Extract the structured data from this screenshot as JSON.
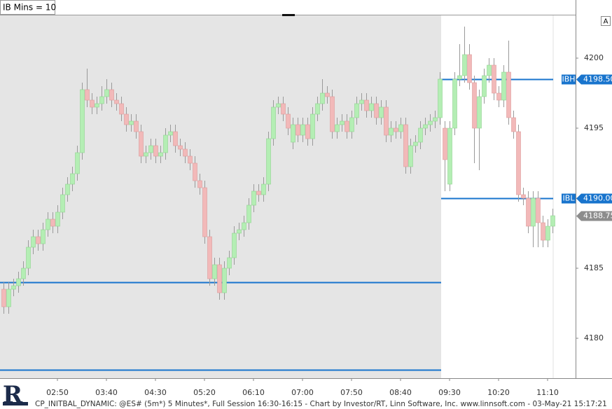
{
  "chart_data": {
    "type": "candlestick",
    "title": "IB Mins = 10",
    "corner_label": "A",
    "footer": "CP_INITBAL_DYNAMIC: @ES# (5m*) 5 Minutes*, Full Session 16:30-16:15 - Chart by Investor/RT, Linn Software, Inc. www.linnsoft.com - 03-May-21 15:17:21",
    "up_color": "#b4eeb4",
    "down_color": "#f2b9b9",
    "categories": [
      null,
      null,
      null,
      null,
      null,
      null,
      null,
      null,
      null,
      null,
      null,
      "02:50",
      null,
      null,
      null,
      null,
      null,
      null,
      null,
      null,
      null,
      "03:40",
      null,
      null,
      null,
      null,
      null,
      null,
      null,
      null,
      null,
      "04:30",
      null,
      null,
      null,
      null,
      null,
      null,
      null,
      null,
      null,
      "05:20",
      null,
      null,
      null,
      null,
      null,
      null,
      null,
      null,
      null,
      "06:10",
      null,
      null,
      null,
      null,
      null,
      null,
      null,
      null,
      null,
      "07:00",
      null,
      null,
      null,
      null,
      null,
      null,
      null,
      null,
      null,
      "07:50",
      null,
      null,
      null,
      null,
      null,
      null,
      null,
      null,
      null,
      "08:40",
      null,
      null,
      null,
      null,
      null,
      null,
      null,
      null,
      null,
      "09:30",
      null,
      null,
      null,
      null,
      null,
      null,
      null,
      null,
      null,
      "10:20",
      null,
      null,
      null,
      null,
      null,
      null,
      null,
      null,
      null,
      "11:10",
      null
    ],
    "open": [
      4183.5,
      4182.25,
      4183.5,
      4183.75,
      4184.25,
      4185.0,
      4186.5,
      4187.25,
      4186.75,
      4187.75,
      4188.5,
      4188.0,
      4189.0,
      4190.25,
      4191.0,
      4191.75,
      4193.25,
      4197.75,
      4197.0,
      4196.5,
      4196.75,
      4197.25,
      4197.75,
      4197.0,
      4196.75,
      4196.0,
      4195.25,
      4195.5,
      4194.75,
      4193.0,
      4193.25,
      4193.75,
      4193.0,
      4193.25,
      4194.5,
      4194.75,
      4193.75,
      4193.5,
      4193.0,
      4192.5,
      4191.25,
      4190.75,
      4187.25,
      4184.25,
      4185.25,
      4183.25,
      4185.0,
      4185.75,
      4187.5,
      4187.75,
      4188.25,
      4189.5,
      4190.5,
      4190.25,
      4191.0,
      4194.25,
      4196.5,
      4196.75,
      4196.0,
      4194.0,
      4195.25,
      4194.5,
      4195.25,
      4194.25,
      4196.0,
      4196.75,
      4197.5,
      4197.25,
      4194.75,
      4195.25,
      4195.5,
      4194.75,
      4195.75,
      4196.75,
      4197.0,
      4196.25,
      4196.75,
      4195.75,
      4196.5,
      4194.5,
      4195.0,
      4194.75,
      4195.25,
      4192.25,
      4193.75,
      4194.0,
      4195.0,
      4195.25,
      4195.5,
      4195.75,
      4195.0,
      4191.0,
      4195.0,
      4198.5,
      4198.75,
      4200.25,
      4198.25,
      4195.0,
      4197.25,
      4198.75,
      4199.5,
      4197.5,
      4197.0,
      4199.0,
      4195.75,
      4194.75,
      4190.25,
      4190.0,
      4188.0,
      4190.0,
      4188.25,
      4187.0,
      4188.0
    ],
    "high": [
      4184.0,
      4184.0,
      4184.25,
      4184.75,
      4185.5,
      4187.0,
      4187.75,
      4187.75,
      4188.25,
      4189.0,
      4189.0,
      4189.5,
      4190.75,
      4191.5,
      4192.25,
      4193.75,
      4198.25,
      4199.25,
      4197.5,
      4197.25,
      4198.0,
      4198.5,
      4198.25,
      4197.5,
      4197.25,
      4196.5,
      4196.0,
      4196.0,
      4195.25,
      4193.75,
      4194.25,
      4194.25,
      4193.75,
      4195.0,
      4195.25,
      4195.25,
      4194.25,
      4194.0,
      4193.5,
      4193.0,
      4191.75,
      4191.25,
      4187.75,
      4185.75,
      4185.75,
      4185.5,
      4186.25,
      4188.0,
      4188.25,
      4188.75,
      4190.0,
      4191.0,
      4191.0,
      4191.5,
      4194.75,
      4197.0,
      4197.25,
      4197.25,
      4196.5,
      4195.75,
      4195.75,
      4195.75,
      4195.75,
      4196.5,
      4197.25,
      4198.5,
      4198.0,
      4197.75,
      4195.75,
      4196.0,
      4196.0,
      4196.25,
      4197.25,
      4197.5,
      4197.5,
      4197.25,
      4197.25,
      4197.0,
      4197.0,
      4195.5,
      4195.5,
      4195.75,
      4195.75,
      4194.25,
      4194.5,
      4195.5,
      4195.75,
      4196.0,
      4196.25,
      4199.0,
      4195.5,
      4195.5,
      4199.0,
      4201.0,
      4202.25,
      4201.0,
      4198.75,
      4197.75,
      4199.25,
      4200.0,
      4200.0,
      4198.0,
      4199.5,
      4201.25,
      4196.25,
      4195.25,
      4190.75,
      4190.5,
      4190.5,
      4190.5,
      4188.75,
      4188.5,
      4189.25
    ],
    "low": [
      4181.75,
      4181.75,
      4183.0,
      4183.25,
      4183.75,
      4184.5,
      4186.0,
      4186.25,
      4186.25,
      4187.25,
      4187.5,
      4187.5,
      4188.5,
      4189.75,
      4190.5,
      4191.25,
      4192.75,
      4196.5,
      4196.0,
      4196.0,
      4196.25,
      4196.75,
      4196.5,
      4196.25,
      4195.5,
      4194.75,
      4194.75,
      4194.25,
      4192.5,
      4192.5,
      4192.75,
      4192.5,
      4192.5,
      4192.75,
      4194.0,
      4193.25,
      4193.0,
      4192.5,
      4192.0,
      4190.75,
      4190.25,
      4186.75,
      4183.75,
      4183.75,
      4182.75,
      4182.75,
      4184.5,
      4185.25,
      4187.0,
      4187.25,
      4187.75,
      4189.0,
      4189.75,
      4189.75,
      4190.5,
      4193.75,
      4196.0,
      4195.5,
      4194.5,
      4193.5,
      4194.0,
      4194.0,
      4193.75,
      4193.75,
      4195.5,
      4196.25,
      4196.75,
      4194.25,
      4194.25,
      4194.75,
      4194.25,
      4194.25,
      4195.25,
      4196.25,
      4195.75,
      4195.75,
      4195.25,
      4195.25,
      4194.0,
      4194.0,
      4194.25,
      4194.25,
      4191.75,
      4191.75,
      4193.25,
      4193.5,
      4194.5,
      4194.75,
      4195.0,
      4195.25,
      4190.5,
      4190.5,
      4194.5,
      4198.0,
      4198.25,
      4197.75,
      4192.5,
      4192.0,
      4196.75,
      4198.25,
      4197.0,
      4196.5,
      4196.5,
      4195.25,
      4194.25,
      4189.75,
      4189.5,
      4187.5,
      4186.5,
      4186.5,
      4186.5,
      4186.5,
      4187.5
    ],
    "close": [
      4182.25,
      4183.5,
      4183.75,
      4184.25,
      4185.0,
      4186.5,
      4187.25,
      4186.75,
      4187.75,
      4188.5,
      4188.0,
      4189.0,
      4190.25,
      4191.0,
      4191.75,
      4193.25,
      4197.75,
      4197.0,
      4196.5,
      4196.75,
      4197.25,
      4197.75,
      4197.0,
      4196.75,
      4196.0,
      4195.25,
      4195.5,
      4194.75,
      4193.0,
      4193.25,
      4193.75,
      4193.0,
      4193.25,
      4194.5,
      4194.75,
      4193.75,
      4193.5,
      4193.0,
      4192.5,
      4191.25,
      4190.75,
      4187.25,
      4184.25,
      4185.25,
      4183.25,
      4185.0,
      4185.75,
      4187.5,
      4187.75,
      4188.25,
      4189.5,
      4190.5,
      4190.25,
      4191.0,
      4194.25,
      4196.5,
      4196.75,
      4196.0,
      4195.0,
      4195.25,
      4194.5,
      4195.25,
      4194.25,
      4196.0,
      4196.75,
      4197.5,
      4197.25,
      4194.75,
      4195.25,
      4195.5,
      4194.75,
      4195.75,
      4196.75,
      4197.0,
      4196.25,
      4196.75,
      4195.75,
      4196.5,
      4194.5,
      4195.0,
      4194.75,
      4195.25,
      4192.25,
      4193.75,
      4194.0,
      4195.0,
      4195.25,
      4195.5,
      4195.75,
      4198.5,
      4192.75,
      4195.0,
      4198.5,
      4198.75,
      4200.25,
      4198.25,
      4195.0,
      4197.25,
      4198.75,
      4199.5,
      4197.5,
      4197.0,
      4199.0,
      4195.75,
      4194.75,
      4190.25,
      4190.0,
      4188.0,
      4190.0,
      4188.25,
      4187.0,
      4188.0,
      4188.75
    ],
    "ylim": [
      4177.15,
      4203.05
    ],
    "yticks": [
      4180,
      4185,
      4190,
      4195,
      4200
    ],
    "level_color": "#1874cd",
    "levels": [
      {
        "name": "IBH",
        "value": 4198.5,
        "label": "4198.50"
      },
      {
        "name": "IBL",
        "value": 4190.0,
        "label": "4190.00"
      },
      {
        "value": 4184.0
      },
      {
        "value": 4177.75
      }
    ],
    "last_price": {
      "value": 4188.75,
      "label": "4188.75"
    }
  }
}
